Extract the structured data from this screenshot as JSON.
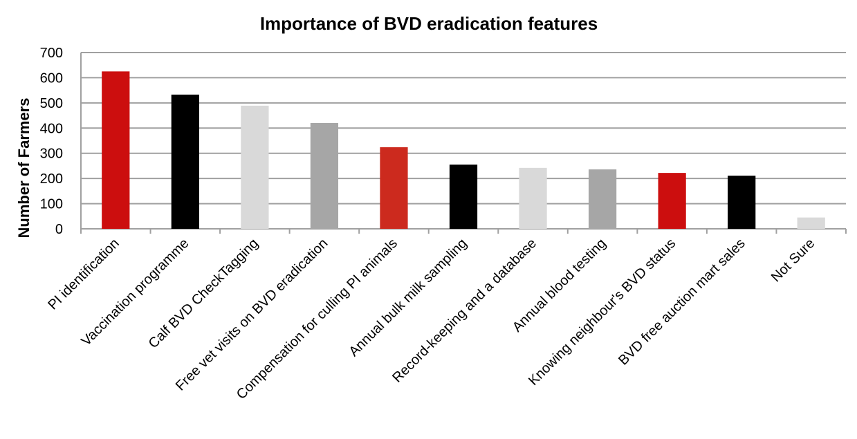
{
  "chart_data": {
    "type": "bar",
    "title": "Importance of BVD eradication features",
    "y_label": "Number of Farmers",
    "categories": [
      "PI identification",
      "Vaccination programme",
      "Calf BVD CheckTagging",
      "Free vet visits on BVD eradication",
      "Compensation for culling PI animals",
      "Annual bulk milk sampling",
      "Record-keeping and a database",
      "Annual blood testing",
      "Knowing neighbour's BVD status",
      "BVD free auction mart sales",
      "Not Sure"
    ],
    "values": [
      625,
      533,
      489,
      420,
      324,
      255,
      242,
      236,
      222,
      211,
      45
    ],
    "colors": [
      "#cc0e0e",
      "#000000",
      "#d9d9d9",
      "#a6a6a6",
      "#cc2a1e",
      "#000000",
      "#d9d9d9",
      "#a6a6a6",
      "#cc0e0e",
      "#000000",
      "#d9d9d9"
    ],
    "ylim": [
      0,
      700
    ],
    "yticks": [
      0,
      100,
      200,
      300,
      400,
      500,
      600,
      700
    ],
    "grid": true
  }
}
